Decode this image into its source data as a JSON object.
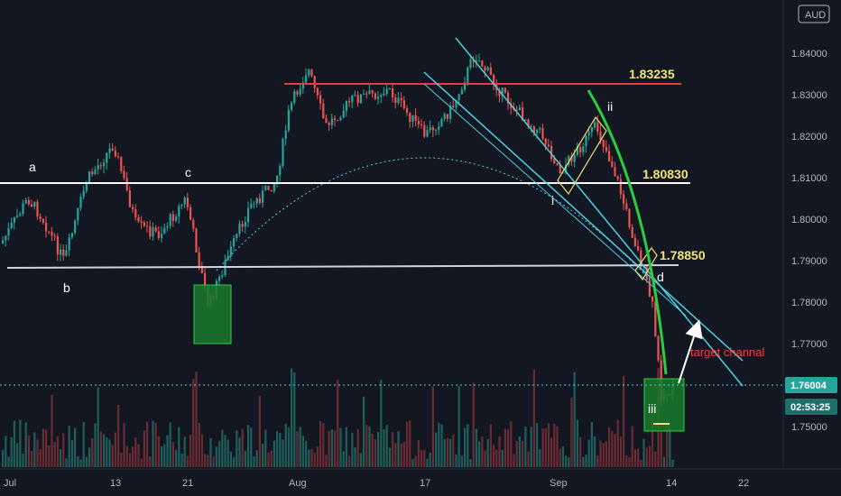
{
  "window": {
    "currency_label": "AUD"
  },
  "chart_data": {
    "type": "candlestick",
    "x_ticks": [
      "Jul",
      "13",
      "21",
      "Aug",
      "17",
      "Sep",
      "14",
      "22"
    ],
    "y_ticks": [
      "1.84000",
      "1.83000",
      "1.82000",
      "1.81000",
      "1.80000",
      "1.79000",
      "1.78000",
      "1.77000",
      "1.75000"
    ],
    "ylim": [
      1.745,
      1.845
    ],
    "price_tag": "1.76004",
    "countdown": "02:53:25",
    "levels": [
      {
        "value": 1.83235,
        "label": "1.83235",
        "color": "#f23645"
      },
      {
        "value": 1.8083,
        "label": "1.80830",
        "color": "#ffffff"
      },
      {
        "value": 1.7885,
        "label": "1.78850",
        "color": "#d1d4dc"
      }
    ],
    "wave_labels": [
      "a",
      "b",
      "c",
      "i",
      "ii",
      "d",
      "iii"
    ],
    "annotation": "target channal",
    "colors": {
      "up": "#26a69a",
      "down": "#ef5350",
      "channel": "#4dd0e1",
      "curve": "#2ecc40",
      "zone": "#1b7a2e"
    }
  }
}
